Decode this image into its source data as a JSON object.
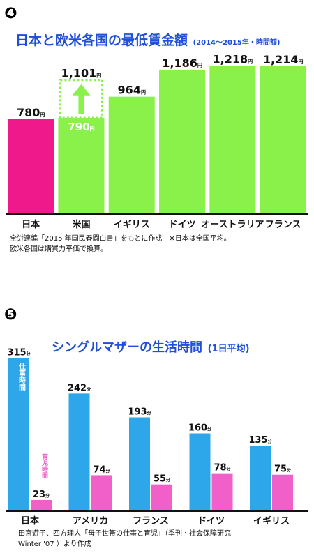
{
  "chart_data": [
    {
      "type": "bar",
      "marker": "❹",
      "title": "日本と欧米各国の最低賃金額",
      "subtitle": "(2014〜2015年・時間額)",
      "unit": "円",
      "categories": [
        "日本",
        "米国",
        "イギリス",
        "ドイツ",
        "オーストラリア",
        "フランス"
      ],
      "values": [
        780,
        790,
        964,
        1186,
        1218,
        1214
      ],
      "value_labels": [
        "780",
        "790",
        "964",
        "1,186",
        "1,218",
        "1,214"
      ],
      "us_extra": {
        "value": 1101,
        "label": "1,101"
      },
      "ylim": [
        0,
        1300
      ],
      "colors": [
        "#f0198c",
        "#8af04a",
        "#8af04a",
        "#8af04a",
        "#8af04a",
        "#8af04a"
      ],
      "notes": [
        "全労連編「2015 年国民春闘白書」をもとに作成　※日本は全国平均。",
        "欧米各国は購買力平価で換算。"
      ]
    },
    {
      "type": "bar",
      "marker": "❺",
      "title": "シングルマザーの生活時間",
      "subtitle": "(1日平均)",
      "unit": "分",
      "categories": [
        "日本",
        "アメリカ",
        "フランス",
        "ドイツ",
        "イギリス"
      ],
      "series": [
        {
          "name": "仕事時間",
          "values": [
            315,
            242,
            193,
            160,
            135
          ],
          "color": "#2ea6ea"
        },
        {
          "name": "育児時間",
          "values": [
            23,
            74,
            55,
            78,
            75
          ],
          "color": "#f060c8"
        }
      ],
      "ylim": [
        0,
        320
      ],
      "notes": [
        "田宮遊子、四方理人「母子世帯の仕事と育児」（季刊・社会保障研究",
        "Winter '07 ）より作成"
      ]
    }
  ]
}
